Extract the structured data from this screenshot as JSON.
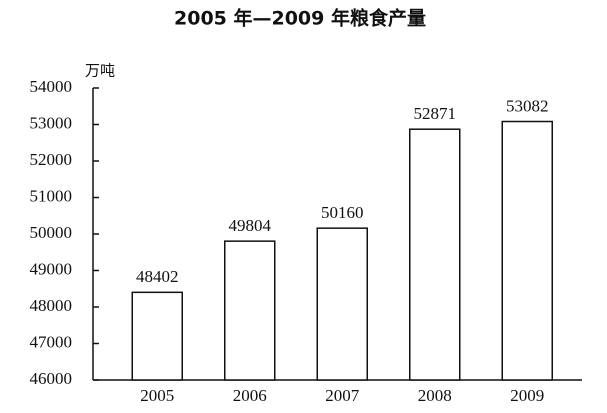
{
  "chart_data": {
    "type": "bar",
    "title": "2005 年—2009 年粮食产量",
    "y_label": "万吨",
    "categories": [
      "2005",
      "2006",
      "2007",
      "2008",
      "2009"
    ],
    "values": [
      48402,
      49804,
      50160,
      52871,
      53082
    ],
    "color": "#ffffff",
    "ylim": [
      46000,
      54000
    ],
    "yticks": [
      46000,
      47000,
      48000,
      49000,
      50000,
      51000,
      52000,
      53000,
      54000
    ],
    "grid": false
  }
}
